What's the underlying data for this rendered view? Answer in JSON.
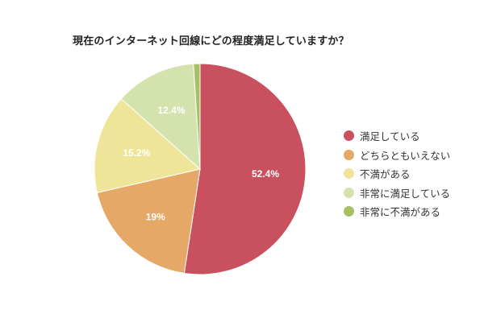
{
  "title": "現在のインターネット回線にどの程度満足していますか？",
  "chart_data": {
    "type": "pie",
    "title": "現在のインターネット回線にどの程度満足していますか？",
    "categories": [
      "満足している",
      "どちらともいえない",
      "不満がある",
      "非常に満足している",
      "非常に不満がある"
    ],
    "values": [
      52.4,
      19,
      15.2,
      12.4,
      1.0
    ],
    "labels": [
      "52.4%",
      "19%",
      "15.2%",
      "12.4%",
      ""
    ],
    "colors": [
      "#c9505f",
      "#e6a866",
      "#eee598",
      "#d4e3ae",
      "#a8c065"
    ],
    "start_angle_deg": 0,
    "direction": "clockwise",
    "legend_position": "right"
  },
  "legend": {
    "items": [
      {
        "label": "満足している",
        "color": "#c9505f"
      },
      {
        "label": "どちらともいえない",
        "color": "#e6a866"
      },
      {
        "label": "不満がある",
        "color": "#eee598"
      },
      {
        "label": "非常に満足している",
        "color": "#d4e3ae"
      },
      {
        "label": "非常に不満がある",
        "color": "#a8c065"
      }
    ]
  }
}
